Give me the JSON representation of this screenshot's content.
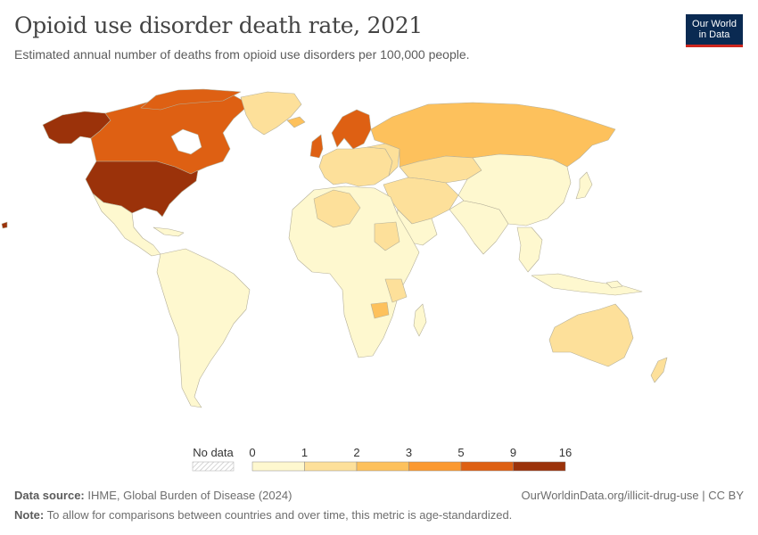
{
  "header": {
    "title": "Opioid use disorder death rate, 2021",
    "subtitle": "Estimated annual number of deaths from opioid use disorders per 100,000 people."
  },
  "logo": {
    "line1": "Our World",
    "line2": "in Data"
  },
  "legend": {
    "no_data_label": "No data",
    "bins": [
      {
        "from": 0,
        "to": 1,
        "color": "#fef8cf"
      },
      {
        "from": 1,
        "to": 2,
        "color": "#fde09a"
      },
      {
        "from": 2,
        "to": 3,
        "color": "#fdc15c"
      },
      {
        "from": 3,
        "to": 5,
        "color": "#fb9930"
      },
      {
        "from": 5,
        "to": 9,
        "color": "#de6013"
      },
      {
        "from": 9,
        "to": 16,
        "color": "#9b320a"
      }
    ],
    "ticks": [
      "0",
      "1",
      "2",
      "3",
      "5",
      "9",
      "16"
    ]
  },
  "map": {
    "colors": {
      "c0": "#fef8cf",
      "c1": "#fde09a",
      "c2": "#fdc15c",
      "c3": "#fb9930",
      "c4": "#de6013",
      "c5": "#9b320a",
      "ocean": "#ffffff",
      "border": "#b5b09a"
    }
  },
  "footer": {
    "source_label": "Data source:",
    "source_text": "IHME, Global Burden of Disease (2024)",
    "url": "OurWorldinData.org/illicit-drug-use | CC BY",
    "note_label": "Note:",
    "note_text": "To allow for comparisons between countries and over time, this metric is age-standardized."
  }
}
